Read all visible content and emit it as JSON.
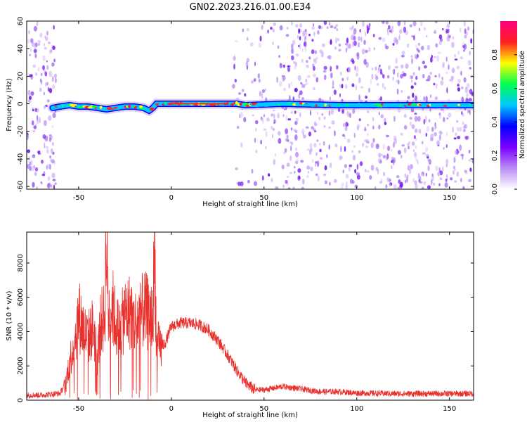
{
  "title": "GN02.2023.216.01.00.E34",
  "colors": {
    "snr_line": "#e8302c",
    "band_core": "#ff2a1a",
    "scatter": "#b98cf5"
  },
  "chart_data": [
    {
      "type": "heatmap",
      "xlabel": "Height of straight line (km)",
      "ylabel": "Frequency (Hz)",
      "xlim": [
        -78,
        163
      ],
      "ylim": [
        -62,
        60
      ],
      "x_ticks": [
        -50,
        0,
        50,
        100,
        150
      ],
      "y_ticks": [
        -60,
        -40,
        -20,
        0,
        20,
        40,
        60
      ],
      "colorbar": {
        "label": "Normalized spectral amplitude",
        "range": [
          0,
          1
        ],
        "ticks": [
          "0.0",
          "0.2",
          "0.4",
          "0.6",
          "0.8"
        ],
        "colormap": [
          "#ffffff",
          "#b98cf5",
          "#7a00ff",
          "#0000ff",
          "#00c8ff",
          "#00ff50",
          "#ffff00",
          "#ff2020",
          "#ff0080"
        ]
      },
      "band_center_hz": [
        {
          "x": -64,
          "y": -3
        },
        {
          "x": -60,
          "y": -2
        },
        {
          "x": -55,
          "y": -1
        },
        {
          "x": -50,
          "y": -2
        },
        {
          "x": -45,
          "y": -2
        },
        {
          "x": -40,
          "y": -3
        },
        {
          "x": -35,
          "y": -4
        },
        {
          "x": -30,
          "y": -3
        },
        {
          "x": -25,
          "y": -2
        },
        {
          "x": -20,
          "y": -2
        },
        {
          "x": -15,
          "y": -3
        },
        {
          "x": -12,
          "y": -5
        },
        {
          "x": -10,
          "y": -3
        },
        {
          "x": -8,
          "y": 0
        },
        {
          "x": 0,
          "y": 0
        },
        {
          "x": 20,
          "y": 0
        },
        {
          "x": 35,
          "y": 0
        },
        {
          "x": 40,
          "y": -1
        },
        {
          "x": 60,
          "y": 0
        },
        {
          "x": 90,
          "y": -1
        },
        {
          "x": 163,
          "y": -1
        }
      ],
      "noise_regions": [
        [
          -78,
          -62
        ],
        [
          33,
          60
        ],
        [
          60,
          163
        ]
      ]
    },
    {
      "type": "line",
      "xlabel": "Height of straight line (km)",
      "ylabel": "SNR (10 * v/v)",
      "xlim": [
        -78,
        163
      ],
      "ylim": [
        0,
        9800
      ],
      "x_ticks": [
        -50,
        0,
        50,
        100,
        150
      ],
      "y_ticks": [
        0,
        2000,
        4000,
        6000,
        8000
      ],
      "series": [
        {
          "x": [
            -78,
            -70,
            -60,
            -57,
            -55,
            -52,
            -50,
            -47,
            -45,
            -42,
            -40,
            -38,
            -36,
            -35,
            -34,
            -32,
            -30,
            -28,
            -25,
            -22,
            -20,
            -17,
            -15,
            -12,
            -10,
            -9,
            -8,
            -7,
            -6,
            -3,
            0,
            5,
            10,
            15,
            20,
            25,
            30,
            35,
            40,
            45,
            50,
            55,
            60,
            70,
            80,
            90,
            100,
            120,
            140,
            163
          ],
          "y": [
            300,
            300,
            400,
            1000,
            2200,
            3500,
            5000,
            4000,
            3600,
            4300,
            2500,
            4500,
            4800,
            9800,
            5000,
            5600,
            4500,
            4000,
            5000,
            5200,
            4500,
            4800,
            5300,
            5000,
            4600,
            9600,
            3000,
            3200,
            3000,
            3400,
            4300,
            4500,
            4500,
            4400,
            4100,
            3500,
            2700,
            1800,
            1000,
            600,
            600,
            700,
            800,
            650,
            500,
            500,
            420,
            380,
            380,
            380
          ]
        }
      ]
    }
  ]
}
